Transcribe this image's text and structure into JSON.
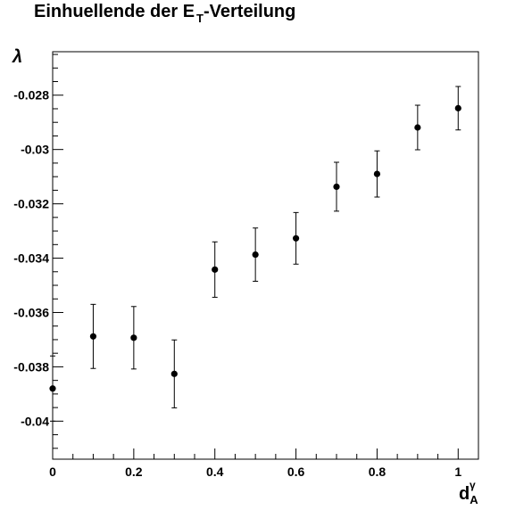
{
  "chart_data": {
    "type": "scatter",
    "title_main": "Einhuellende der E",
    "title_sub": "T",
    "title_rest": "-Verteilung",
    "xlabel_main": "d",
    "xlabel_sup": "γ",
    "xlabel_sub": "A",
    "ylabel": "λ",
    "xlim": [
      0,
      1.05
    ],
    "ylim": [
      -0.0414,
      -0.0264
    ],
    "x_ticks": [
      0,
      0.2,
      0.4,
      0.6,
      0.8,
      1
    ],
    "x_tick_labels": [
      "0",
      "0.2",
      "0.4",
      "0.6",
      "0.8",
      "1"
    ],
    "y_ticks": [
      -0.04,
      -0.038,
      -0.036,
      -0.034,
      -0.032,
      -0.03,
      -0.028
    ],
    "y_tick_labels": [
      "-0.04",
      "-0.038",
      "-0.036",
      "-0.034",
      "-0.032",
      "-0.03",
      "-0.028"
    ],
    "grid": false,
    "series": [
      {
        "x": [
          0,
          0.1,
          0.2,
          0.3,
          0.4,
          0.5,
          0.6,
          0.7,
          0.8,
          0.9,
          1.0
        ],
        "y": [
          -0.0388,
          -0.03688,
          -0.03693,
          -0.03826,
          -0.03442,
          -0.03387,
          -0.03327,
          -0.03137,
          -0.0309,
          -0.02919,
          -0.02848
        ],
        "yerr": [
          0.0012,
          0.00118,
          0.00115,
          0.00125,
          0.00102,
          0.00098,
          0.00095,
          0.0009,
          0.00085,
          0.00082,
          0.0008
        ]
      }
    ]
  }
}
